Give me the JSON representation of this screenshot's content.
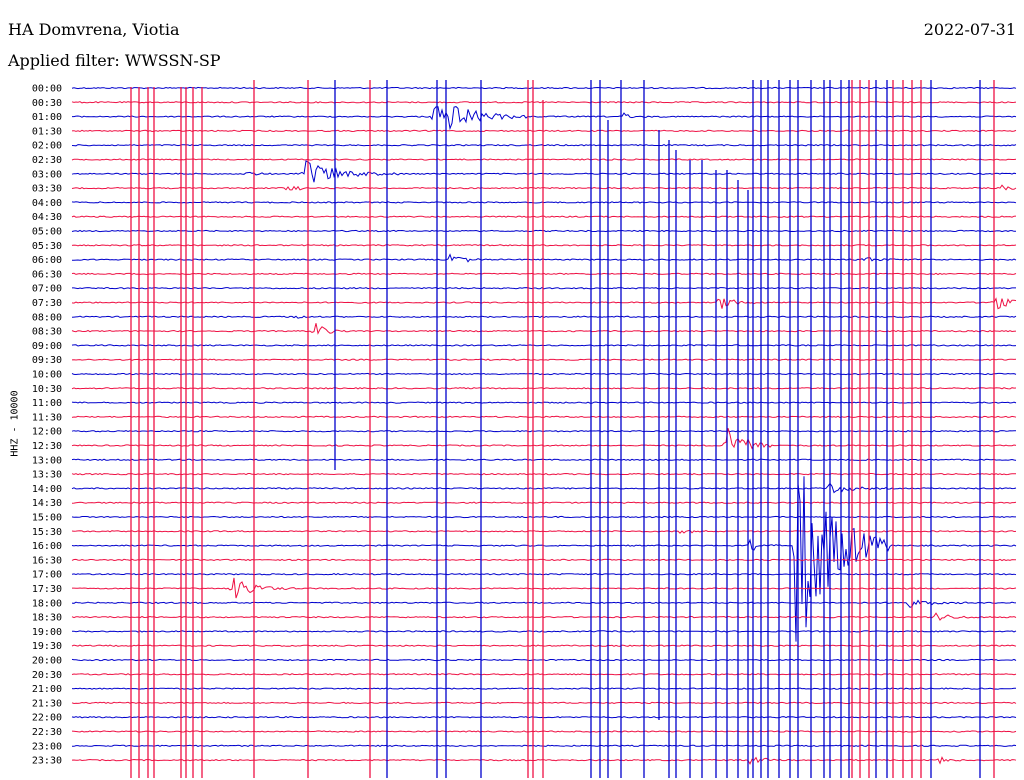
{
  "header": {
    "station": "HA Domvrena, Viotia",
    "date": "2022-07-31",
    "filter": "Applied filter: WWSSN-SP"
  },
  "chart_data": {
    "type": "line",
    "title": "HA Domvrena, Viotia",
    "subtitle": "Applied filter: WWSSN-SP",
    "date": "2022-07-31",
    "ylabel": "HHZ - 10000",
    "xlabel": "",
    "grid": false,
    "legend": "none",
    "row_labels": [
      "00:00",
      "00:30",
      "01:00",
      "01:30",
      "02:00",
      "02:30",
      "03:00",
      "03:30",
      "04:00",
      "04:30",
      "05:00",
      "05:30",
      "06:00",
      "06:30",
      "07:00",
      "07:30",
      "08:00",
      "08:30",
      "09:00",
      "09:30",
      "10:00",
      "10:30",
      "11:00",
      "11:30",
      "12:00",
      "12:30",
      "13:00",
      "13:30",
      "14:00",
      "14:30",
      "15:00",
      "15:30",
      "16:00",
      "16:30",
      "17:00",
      "17:30",
      "18:00",
      "18:30",
      "19:00",
      "19:30",
      "20:00",
      "20:30",
      "21:00",
      "21:30",
      "22:00",
      "22:30",
      "23:00",
      "23:30"
    ],
    "x_minutes": [
      0,
      30
    ],
    "row_colors": [
      "#0000cc",
      "#ee1144"
    ],
    "events": [
      {
        "row": "01:00",
        "minute": 11.5,
        "amplitude": 22,
        "length": 3
      },
      {
        "row": "01:00",
        "minute": 17.5,
        "amplitude": 5,
        "length": 1
      },
      {
        "row": "03:00",
        "minute": 7.4,
        "amplitude": 14,
        "length": 3
      },
      {
        "row": "03:00",
        "minute": 5.5,
        "amplitude": 3,
        "length": 1
      },
      {
        "row": "03:30",
        "minute": 6.8,
        "amplitude": 5,
        "length": 1
      },
      {
        "row": "03:30",
        "minute": 29.5,
        "amplitude": 4,
        "length": 1
      },
      {
        "row": "06:00",
        "minute": 12.0,
        "amplitude": 8,
        "length": 1.2
      },
      {
        "row": "06:00",
        "minute": 25.2,
        "amplitude": 4,
        "length": 1
      },
      {
        "row": "07:30",
        "minute": 20.5,
        "amplitude": 8,
        "length": 1.5
      },
      {
        "row": "07:30",
        "minute": 29.2,
        "amplitude": 10,
        "length": 1.5
      },
      {
        "row": "08:00",
        "minute": 7.0,
        "amplitude": 4,
        "length": 1
      },
      {
        "row": "08:30",
        "minute": 7.7,
        "amplitude": 9,
        "length": 1.2
      },
      {
        "row": "12:30",
        "minute": 20.8,
        "amplitude": 30,
        "length": 1.5
      },
      {
        "row": "14:00",
        "minute": 24.0,
        "amplitude": 6,
        "length": 2
      },
      {
        "row": "15:30",
        "minute": 19.3,
        "amplitude": 4,
        "length": 1
      },
      {
        "row": "16:00",
        "minute": 21.5,
        "amplitude": 8,
        "length": 1
      },
      {
        "row": "16:00",
        "minute": 23.0,
        "amplitude": 120,
        "length": 3
      },
      {
        "row": "17:30",
        "minute": 5.1,
        "amplitude": 12,
        "length": 2
      },
      {
        "row": "18:00",
        "minute": 26.5,
        "amplitude": 5,
        "length": 2
      },
      {
        "row": "18:30",
        "minute": 27.3,
        "amplitude": 5,
        "length": 2
      },
      {
        "row": "23:30",
        "minute": 21.5,
        "amplitude": 7,
        "length": 1
      },
      {
        "row": "23:30",
        "minute": 27.5,
        "amplitude": 6,
        "length": 1
      }
    ]
  }
}
